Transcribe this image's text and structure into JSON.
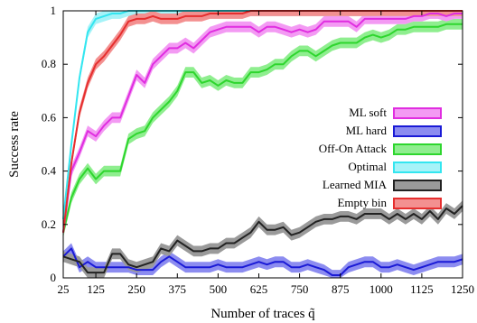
{
  "chart_data": {
    "type": "line",
    "xlabel": "Number of traces q̃",
    "ylabel": "Success rate",
    "xlim": [
      25,
      1250
    ],
    "ylim": [
      0,
      1
    ],
    "x_ticks": [
      "25",
      "125",
      "250",
      "375",
      "500",
      "625",
      "750",
      "875",
      "1000",
      "1125",
      "1250"
    ],
    "y_ticks": [
      "0",
      "0.2",
      "0.4",
      "0.6",
      "0.8",
      "1"
    ],
    "grid": false,
    "legend_position": "right",
    "series": [
      {
        "name": "ML soft",
        "color": "#e02de0",
        "fill": "#f39af3",
        "x": [
          25,
          50,
          75,
          100,
          125,
          150,
          175,
          200,
          225,
          250,
          275,
          300,
          325,
          350,
          375,
          400,
          425,
          450,
          475,
          500,
          525,
          550,
          575,
          600,
          625,
          650,
          675,
          700,
          725,
          750,
          775,
          800,
          825,
          850,
          875,
          900,
          925,
          950,
          975,
          1000,
          1025,
          1050,
          1075,
          1100,
          1125,
          1150,
          1175,
          1200,
          1225,
          1250
        ],
        "values": [
          0.17,
          0.4,
          0.47,
          0.55,
          0.53,
          0.57,
          0.6,
          0.6,
          0.68,
          0.76,
          0.73,
          0.8,
          0.83,
          0.86,
          0.86,
          0.88,
          0.86,
          0.89,
          0.92,
          0.93,
          0.94,
          0.94,
          0.94,
          0.94,
          0.92,
          0.94,
          0.94,
          0.93,
          0.92,
          0.93,
          0.92,
          0.93,
          0.96,
          0.96,
          0.96,
          0.96,
          0.94,
          0.97,
          0.97,
          0.97,
          0.97,
          0.97,
          0.97,
          0.98,
          0.98,
          0.99,
          0.99,
          0.98,
          0.99,
          0.99
        ]
      },
      {
        "name": "ML hard",
        "color": "#1a1ad6",
        "fill": "#8c8cf0",
        "x": [
          25,
          50,
          75,
          100,
          125,
          150,
          175,
          200,
          225,
          250,
          275,
          300,
          325,
          350,
          375,
          400,
          425,
          450,
          475,
          500,
          525,
          550,
          575,
          600,
          625,
          650,
          675,
          700,
          725,
          750,
          775,
          800,
          825,
          850,
          875,
          900,
          925,
          950,
          975,
          1000,
          1025,
          1050,
          1075,
          1100,
          1125,
          1150,
          1175,
          1200,
          1225,
          1250
        ],
        "values": [
          0.08,
          0.11,
          0.04,
          0.06,
          0.04,
          0.04,
          0.04,
          0.04,
          0.04,
          0.03,
          0.03,
          0.03,
          0.06,
          0.08,
          0.06,
          0.04,
          0.04,
          0.04,
          0.04,
          0.05,
          0.04,
          0.04,
          0.04,
          0.05,
          0.06,
          0.05,
          0.06,
          0.06,
          0.04,
          0.04,
          0.05,
          0.04,
          0.03,
          0.01,
          0.01,
          0.04,
          0.05,
          0.06,
          0.06,
          0.04,
          0.04,
          0.05,
          0.04,
          0.03,
          0.04,
          0.05,
          0.06,
          0.06,
          0.06,
          0.07
        ]
      },
      {
        "name": "Off-On Attack",
        "color": "#2ed62e",
        "fill": "#8fee8f",
        "x": [
          25,
          50,
          75,
          100,
          125,
          150,
          175,
          200,
          225,
          250,
          275,
          300,
          325,
          350,
          375,
          400,
          425,
          450,
          475,
          500,
          525,
          550,
          575,
          600,
          625,
          650,
          675,
          700,
          725,
          750,
          775,
          800,
          825,
          850,
          875,
          900,
          925,
          950,
          975,
          1000,
          1025,
          1050,
          1075,
          1100,
          1125,
          1150,
          1175,
          1200,
          1225,
          1250
        ],
        "values": [
          0.17,
          0.3,
          0.37,
          0.41,
          0.37,
          0.4,
          0.4,
          0.4,
          0.52,
          0.54,
          0.55,
          0.6,
          0.63,
          0.66,
          0.7,
          0.77,
          0.77,
          0.73,
          0.74,
          0.72,
          0.74,
          0.73,
          0.73,
          0.77,
          0.77,
          0.78,
          0.8,
          0.8,
          0.83,
          0.85,
          0.85,
          0.83,
          0.85,
          0.87,
          0.88,
          0.88,
          0.88,
          0.9,
          0.91,
          0.9,
          0.91,
          0.93,
          0.93,
          0.94,
          0.94,
          0.94,
          0.94,
          0.95,
          0.95,
          0.95
        ]
      },
      {
        "name": "Optimal",
        "color": "#33e6f0",
        "fill": "#a6f3f8",
        "x": [
          25,
          50,
          75,
          100,
          125,
          150,
          175,
          200,
          225,
          250,
          275,
          300,
          325,
          350,
          375,
          400,
          425,
          450,
          475,
          500,
          525,
          550,
          575,
          600,
          625,
          650,
          675,
          700,
          725,
          750,
          775,
          800,
          825,
          850,
          875,
          900,
          925,
          950,
          975,
          1000,
          1025,
          1050,
          1075,
          1100,
          1125,
          1150,
          1175,
          1200,
          1225,
          1250
        ],
        "values": [
          0.22,
          0.5,
          0.75,
          0.92,
          0.97,
          0.98,
          0.99,
          0.99,
          1,
          1,
          1,
          1,
          1,
          1,
          1,
          1,
          1,
          1,
          1,
          1,
          1,
          1,
          1,
          1,
          1,
          1,
          1,
          1,
          1,
          1,
          1,
          1,
          1,
          1,
          1,
          1,
          1,
          1,
          1,
          1,
          1,
          1,
          1,
          1,
          1,
          1,
          1,
          1,
          1,
          1
        ]
      },
      {
        "name": "Learned MIA",
        "color": "#222222",
        "fill": "#9a9a9a",
        "x": [
          25,
          50,
          75,
          100,
          125,
          150,
          175,
          200,
          225,
          250,
          275,
          300,
          325,
          350,
          375,
          400,
          425,
          450,
          475,
          500,
          525,
          550,
          575,
          600,
          625,
          650,
          675,
          700,
          725,
          750,
          775,
          800,
          825,
          850,
          875,
          900,
          925,
          950,
          975,
          1000,
          1025,
          1050,
          1075,
          1100,
          1125,
          1150,
          1175,
          1200,
          1225,
          1250
        ],
        "values": [
          0.08,
          0.07,
          0.06,
          0.02,
          0.02,
          0.02,
          0.09,
          0.09,
          0.05,
          0.04,
          0.05,
          0.06,
          0.11,
          0.1,
          0.14,
          0.12,
          0.1,
          0.1,
          0.11,
          0.11,
          0.13,
          0.13,
          0.15,
          0.17,
          0.21,
          0.18,
          0.18,
          0.19,
          0.16,
          0.17,
          0.19,
          0.21,
          0.22,
          0.22,
          0.23,
          0.23,
          0.22,
          0.24,
          0.24,
          0.24,
          0.22,
          0.24,
          0.22,
          0.24,
          0.22,
          0.25,
          0.22,
          0.26,
          0.24,
          0.27
        ]
      },
      {
        "name": "Empty bin",
        "color": "#e62e2e",
        "fill": "#f39090",
        "x": [
          25,
          50,
          75,
          100,
          125,
          150,
          175,
          200,
          225,
          250,
          275,
          300,
          325,
          350,
          375,
          400,
          425,
          450,
          475,
          500,
          525,
          550,
          575,
          600,
          625,
          650,
          675,
          700,
          725,
          750,
          775,
          800,
          825,
          850,
          875,
          900,
          925,
          950,
          975,
          1000,
          1025,
          1050,
          1075,
          1100,
          1125,
          1150,
          1175,
          1200,
          1225,
          1250
        ],
        "values": [
          0.17,
          0.43,
          0.62,
          0.73,
          0.8,
          0.83,
          0.87,
          0.91,
          0.96,
          0.97,
          0.97,
          0.98,
          0.97,
          0.97,
          0.97,
          0.98,
          0.98,
          0.98,
          0.99,
          0.99,
          0.99,
          0.99,
          0.99,
          1,
          1,
          1,
          1,
          1,
          1,
          1,
          1,
          1,
          1,
          1,
          1,
          1,
          1,
          1,
          1,
          1,
          1,
          1,
          1,
          1,
          1,
          1,
          1,
          1,
          1,
          1
        ]
      }
    ],
    "band_halfwidth": 0.02
  }
}
